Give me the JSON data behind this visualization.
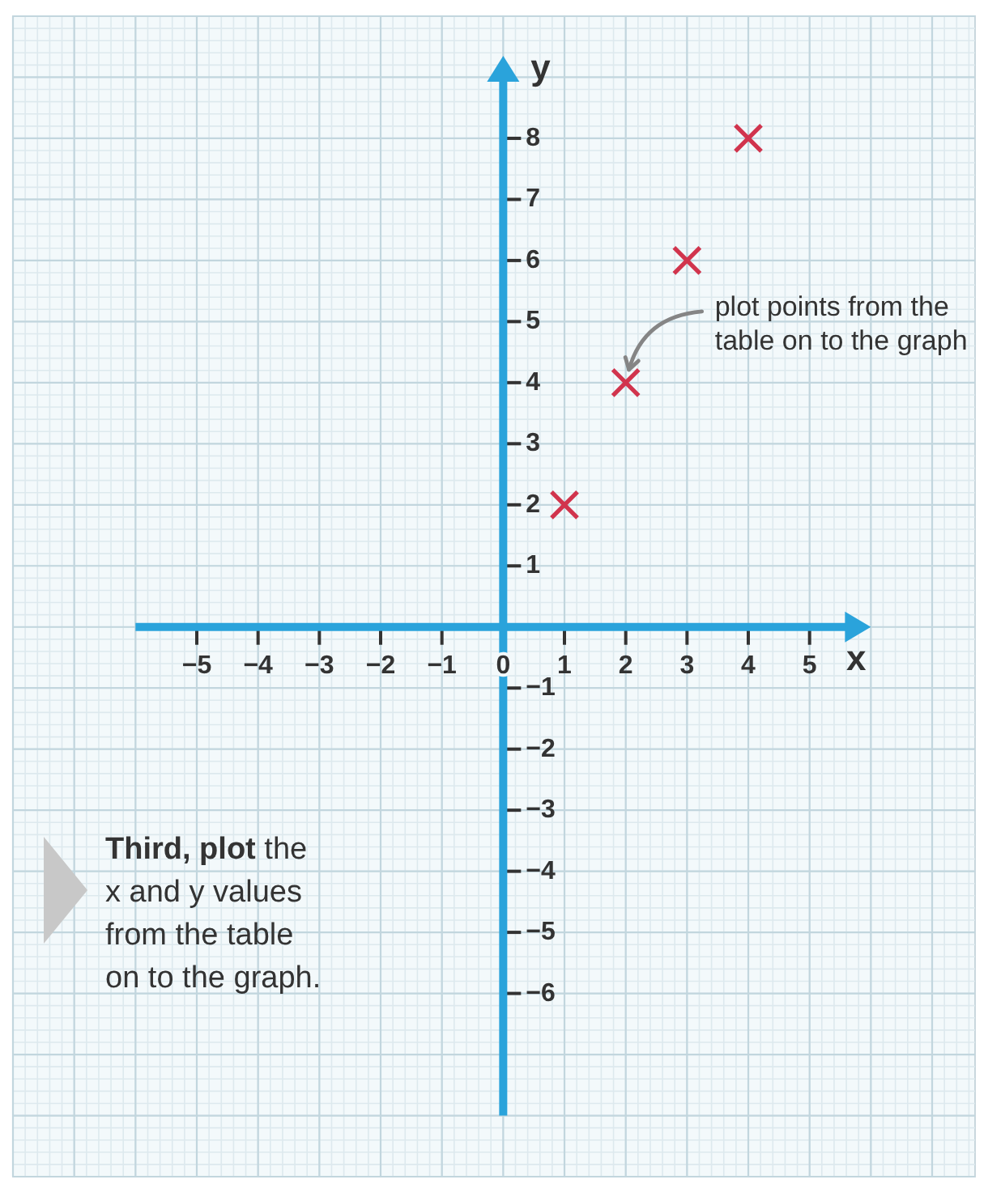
{
  "chart_data": {
    "type": "scatter",
    "xlabel": "x",
    "ylabel": "y",
    "x": [
      1,
      2,
      3,
      4
    ],
    "values": [
      2,
      4,
      6,
      8
    ],
    "color": "#d1344d",
    "marker": "cross",
    "xlim": [
      -8,
      7.7
    ],
    "ylim": [
      -9,
      10
    ],
    "xticks": [
      -5,
      -4,
      -3,
      -2,
      -1,
      0,
      1,
      2,
      3,
      4,
      5
    ],
    "yticks": [
      -6,
      -5,
      -4,
      -3,
      -2,
      -1,
      1,
      2,
      3,
      4,
      5,
      6,
      7,
      8
    ],
    "grid": true,
    "annotations": [
      {
        "text": "plot points from the table on to the graph",
        "x": 2,
        "y": 4
      },
      "Third, plot the x and y values from the table on to the graph."
    ]
  }
}
